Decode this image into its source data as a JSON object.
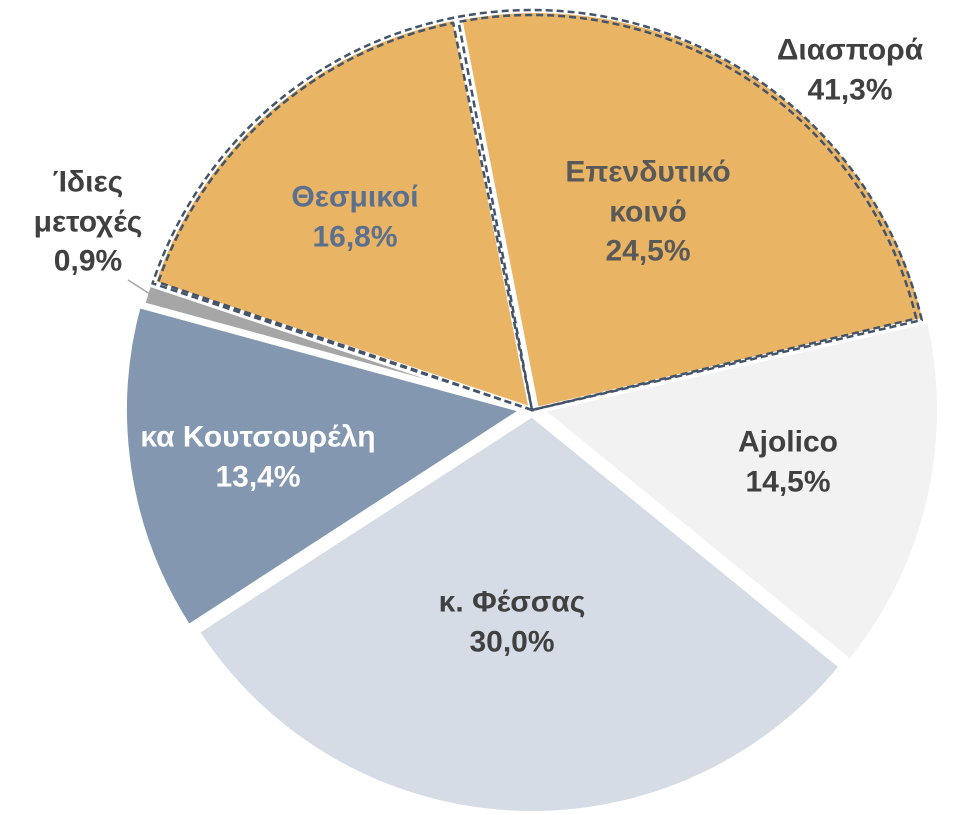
{
  "chart_data": {
    "type": "pie",
    "categories": [
      "Ajolico",
      "κ. Φέσσας",
      "κα Κουτσουρέλη",
      "Ίδιες μετοχές",
      "Θεσμικοί",
      "Επενδυτικό κοινό"
    ],
    "values": [
      14.5,
      30.0,
      13.4,
      0.9,
      16.8,
      24.5
    ],
    "value_labels": [
      "14,5%",
      "30,0%",
      "13,4%",
      "0,9%",
      "16,8%",
      "24,5%"
    ],
    "colors": [
      "#f2f2f2",
      "#d6dce5",
      "#8497b0",
      "#a6a6a6",
      "#e9b464",
      "#e9b464"
    ],
    "group": {
      "name": "Διασπορά",
      "value": 41.3,
      "value_label": "41,3%",
      "outline_color": "#44546a"
    }
  }
}
